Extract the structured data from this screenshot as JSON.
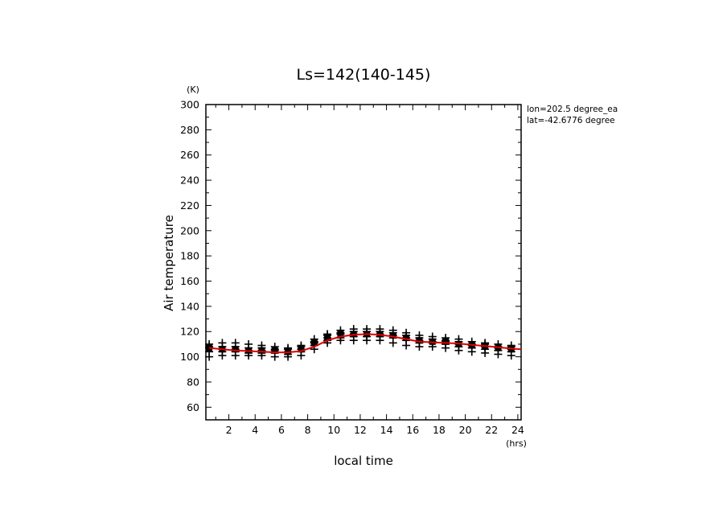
{
  "chart_data": {
    "type": "scatter",
    "title": "Ls=142(140-145)",
    "xlabel": "local time",
    "x_unit": "(hrs)",
    "ylabel": "Air temperature",
    "y_unit": "(K)",
    "xlim": [
      0.25,
      24.25
    ],
    "ylim": [
      50,
      300
    ],
    "x_ticks": [
      2,
      4,
      6,
      8,
      10,
      12,
      14,
      16,
      18,
      20,
      22,
      24
    ],
    "y_ticks": [
      60,
      80,
      100,
      120,
      140,
      160,
      180,
      200,
      220,
      240,
      260,
      280,
      300
    ],
    "annotations": [
      "lon=202.5 degree_ea",
      "lat=-42.6776 degree"
    ],
    "line_color": "#e00000",
    "marker_color": "#000000",
    "series": [
      {
        "kind": "line",
        "x": [
          0.5,
          1.5,
          2.5,
          3.5,
          4.5,
          5.5,
          6.5,
          7.5,
          8.5,
          9.5,
          10.5,
          11.5,
          12.5,
          13.5,
          14.5,
          15.5,
          16.5,
          17.5,
          18.5,
          19.5,
          20.5,
          21.5,
          22.5,
          23.5,
          24.25
        ],
        "y": [
          107,
          106,
          105,
          104.5,
          104,
          103.5,
          103.5,
          104.5,
          108,
          113,
          116,
          117.5,
          118,
          117.5,
          116,
          114,
          112,
          111.5,
          111,
          110.5,
          109.5,
          108.5,
          107.5,
          106.5,
          106
        ]
      },
      {
        "kind": "markers",
        "x": [
          0.5,
          1.5,
          2.5,
          3.5,
          4.5,
          5.5,
          6.5,
          7.5,
          8.5,
          9.5,
          10.5,
          11.5,
          12.5,
          13.5,
          14.5,
          15.5,
          16.5,
          17.5,
          18.5,
          19.5,
          20.5,
          21.5,
          22.5,
          23.5
        ],
        "y_values": [
          [
            100,
            104,
            107,
            108,
            110
          ],
          [
            101,
            104,
            106,
            108,
            111
          ],
          [
            101,
            104,
            106,
            108,
            111
          ],
          [
            101,
            103,
            105,
            107,
            110
          ],
          [
            101,
            103,
            105,
            107,
            109
          ],
          [
            100,
            103,
            105,
            106,
            108
          ],
          [
            100,
            102,
            104,
            106,
            107
          ],
          [
            101,
            104,
            106,
            108,
            109
          ],
          [
            106,
            109,
            111,
            112,
            114
          ],
          [
            111,
            113,
            115,
            117,
            118
          ],
          [
            113,
            115,
            118,
            119,
            121
          ],
          [
            113,
            116,
            118,
            120,
            122
          ],
          [
            113,
            116,
            118,
            120,
            122
          ],
          [
            113,
            116,
            118,
            120,
            122
          ],
          [
            111,
            115,
            117,
            119,
            121
          ],
          [
            109,
            113,
            115,
            117,
            119
          ],
          [
            108,
            111,
            113,
            115,
            117
          ],
          [
            108,
            111,
            112,
            114,
            116
          ],
          [
            107,
            110,
            112,
            113,
            115
          ],
          [
            105,
            108,
            110,
            112,
            114
          ],
          [
            104,
            107,
            109,
            110,
            112
          ],
          [
            103,
            106,
            108,
            110,
            111
          ],
          [
            102,
            105,
            107,
            108,
            110
          ],
          [
            101,
            104,
            106,
            108,
            109
          ]
        ]
      }
    ],
    "grid": false,
    "legend": "none"
  }
}
